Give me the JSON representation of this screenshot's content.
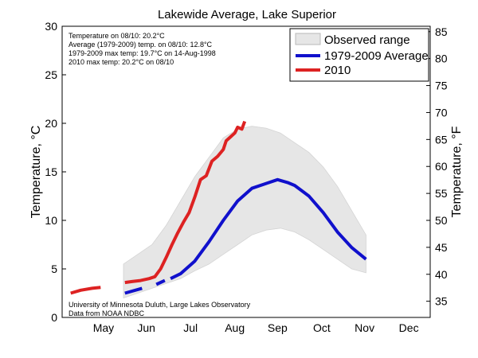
{
  "chart_data": {
    "type": "line",
    "title": "Lakewide Average, Lake Superior",
    "ylabel": "Temperature, °C",
    "ylabel_right": "Temperature, °F",
    "ylim": [
      0,
      30
    ],
    "yticks": [
      0,
      5,
      10,
      15,
      20,
      25,
      30
    ],
    "ylim_right_f": [
      32,
      86
    ],
    "yticks_right": [
      35,
      40,
      45,
      50,
      55,
      60,
      65,
      70,
      75,
      80,
      85
    ],
    "x_unit": "day of year",
    "xlim": [
      107,
      365
    ],
    "months": [
      {
        "label": "May",
        "day": 136
      },
      {
        "label": "Jun",
        "day": 166
      },
      {
        "label": "Jul",
        "day": 197
      },
      {
        "label": "Aug",
        "day": 228
      },
      {
        "label": "Sep",
        "day": 258
      },
      {
        "label": "Oct",
        "day": 289
      },
      {
        "label": "Nov",
        "day": 319
      },
      {
        "label": "Dec",
        "day": 350
      }
    ],
    "legend": {
      "position": "top-right",
      "entries": [
        "Observed range",
        "1979-2009 Average",
        "2010"
      ]
    },
    "notes": [
      "Temperature on 08/10: 20.2°C",
      "Average (1979-2009) temp. on 08/10: 12.8°C",
      "1979-2009 max temp: 19.7°C on 14-Aug-1998",
      "2010 max temp: 20.2°C on 08/10"
    ],
    "source": [
      "University of Minnesota Duluth, Large Lakes Observatory",
      "Data from NOAA NDBC"
    ],
    "colors": {
      "range": "#e6e6e6",
      "range_stroke": "#d4d4d4",
      "average": "#1010cc",
      "year_2010": "#dd2222"
    },
    "series": [
      {
        "name": "Observed range",
        "type": "area",
        "x": [
          150,
          160,
          170,
          180,
          190,
          200,
          210,
          220,
          230,
          240,
          250,
          260,
          270,
          280,
          290,
          300,
          310,
          320
        ],
        "low": [
          2.0,
          2.5,
          3.0,
          3.5,
          4.0,
          4.8,
          5.5,
          6.5,
          7.5,
          8.5,
          9.0,
          9.2,
          8.8,
          8.0,
          7.0,
          6.0,
          5.0,
          4.6
        ],
        "high": [
          5.5,
          6.5,
          7.5,
          9.5,
          12.0,
          14.5,
          16.5,
          18.5,
          19.4,
          19.7,
          19.5,
          19.0,
          18.0,
          17.0,
          15.5,
          13.5,
          11.0,
          8.5
        ]
      },
      {
        "name": "1979-2009 Average",
        "segments": [
          {
            "x": [
              151,
              163
            ],
            "y": [
              2.5,
              3.0
            ]
          },
          {
            "x": [
              173,
              179
            ],
            "y": [
              3.4,
              3.8
            ]
          },
          {
            "x": [
              183,
              190,
              200,
              210,
              220,
              230,
              240,
              250,
              258,
              265,
              270,
              280,
              290,
              300,
              310,
              320
            ],
            "y": [
              4.0,
              4.5,
              5.8,
              7.8,
              10.0,
              12.0,
              13.3,
              13.8,
              14.2,
              13.9,
              13.6,
              12.5,
              10.8,
              8.8,
              7.2,
              6.0
            ]
          }
        ]
      },
      {
        "name": "2010",
        "segments": [
          {
            "x": [
              113,
              120,
              128,
              134
            ],
            "y": [
              2.5,
              2.8,
              3.0,
              3.1
            ]
          },
          {
            "x": [
              151,
              156,
              162,
              168,
              172,
              176,
              180,
              184,
              188,
              192,
              196,
              200,
              204,
              208,
              212,
              216,
              220,
              222,
              225,
              228,
              230,
              233,
              235
            ],
            "y": [
              3.6,
              3.7,
              3.8,
              4.0,
              4.2,
              5.0,
              6.2,
              7.5,
              8.7,
              9.8,
              10.8,
              12.4,
              14.2,
              14.6,
              16.1,
              16.6,
              17.3,
              18.2,
              18.6,
              19.0,
              19.6,
              19.4,
              20.2
            ]
          }
        ]
      }
    ]
  }
}
